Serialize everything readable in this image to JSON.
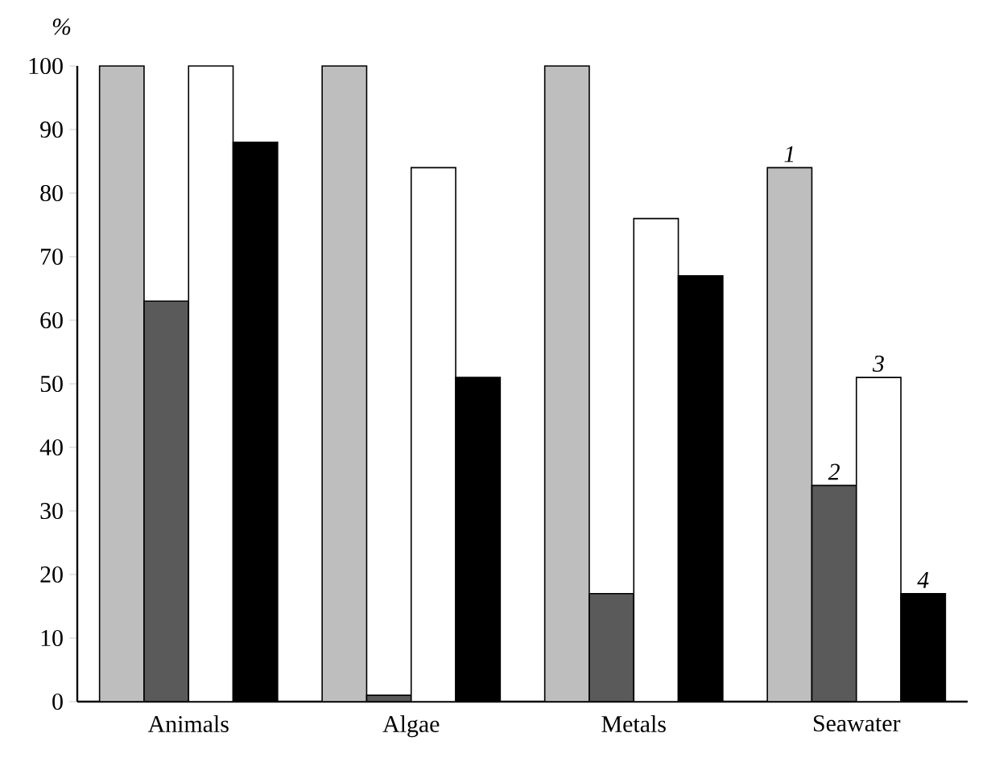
{
  "chart_data": {
    "type": "bar",
    "ylabel": "%",
    "categories": [
      "Animals",
      "Algae",
      "Metals",
      "Seawater"
    ],
    "series": [
      {
        "name": "1",
        "color": "#bebebe",
        "values": [
          100,
          100,
          100,
          84
        ]
      },
      {
        "name": "2",
        "color": "#5a5a5a",
        "values": [
          63,
          1,
          17,
          34
        ]
      },
      {
        "name": "3",
        "color": "#ffffff",
        "values": [
          100,
          84,
          76,
          51
        ]
      },
      {
        "name": "4",
        "color": "#000000",
        "values": [
          88,
          51,
          67,
          17
        ]
      }
    ],
    "ylim": [
      0,
      100
    ],
    "yticks": [
      0,
      10,
      20,
      30,
      40,
      50,
      60,
      70,
      80,
      90,
      100
    ],
    "grid": false,
    "legend": false
  }
}
